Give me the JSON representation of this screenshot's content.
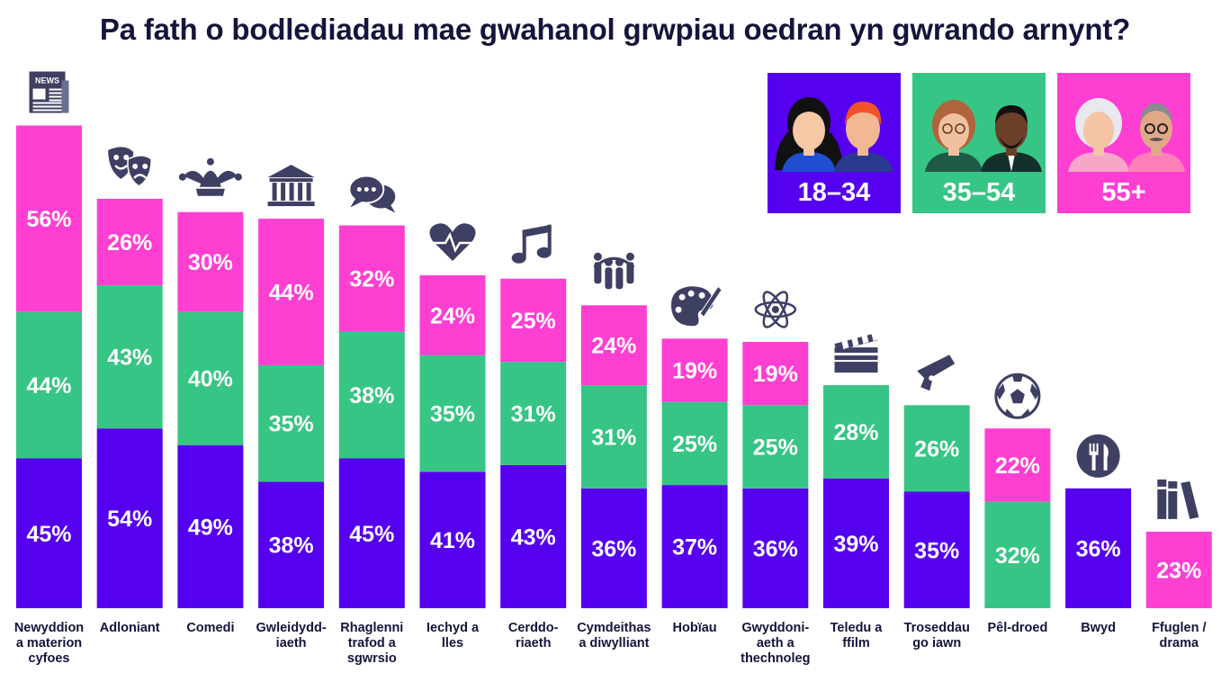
{
  "title": "Pa fath o bodlediadau mae gwahanol grwpiau oedran yn gwrando arnynt?",
  "colors": {
    "purple": "#5500ee",
    "green": "#37c585",
    "pink": "#ff3fd2",
    "dark": "#14143c",
    "icon": "#3d3f63"
  },
  "legend": [
    {
      "label": "18–34",
      "color": "#5500ee"
    },
    {
      "label": "35–54",
      "color": "#37c585"
    },
    {
      "label": "55+",
      "color": "#ff3fd2"
    }
  ],
  "chart_data": {
    "type": "bar",
    "stacked": true,
    "title": "Pa fath o bodlediadau mae gwahanol grwpiau oedran yn gwrando arnynt?",
    "categories": [
      "Newyddion a materion cyfoes",
      "Adloniant",
      "Comedi",
      "Gwleidyddiaeth",
      "Rhaglenni trafod a sgwrsio",
      "Iechyd a lles",
      "Cerddoriaeth",
      "Cymdeithas a diwylliant",
      "Hobïau",
      "Gwyddoniaeth a thechnoleg",
      "Teledu a ffilm",
      "Troseddau go iawn",
      "Pêl-droed",
      "Bwyd",
      "Ffuglen / drama"
    ],
    "category_label_lines": [
      [
        "Newyddion",
        "a materion",
        "cyfoes"
      ],
      [
        "Adloniant"
      ],
      [
        "Comedi"
      ],
      [
        "Gwleidydd-",
        "iaeth"
      ],
      [
        "Rhaglenni",
        "trafod a",
        "sgwrsio"
      ],
      [
        "Iechyd a",
        "lles"
      ],
      [
        "Cerddo-",
        "riaeth"
      ],
      [
        "Cymdeithas",
        "a diwylliant"
      ],
      [
        "Hobïau"
      ],
      [
        "Gwyddoni-",
        "aeth a",
        "thechnoleg"
      ],
      [
        "Teledu a",
        "ffilm"
      ],
      [
        "Troseddau",
        "go iawn"
      ],
      [
        "Pêl-droed"
      ],
      [
        "Bwyd"
      ],
      [
        "Ffuglen /",
        "drama"
      ]
    ],
    "series": [
      {
        "name": "18–34",
        "color": "#5500ee",
        "values": [
          45,
          54,
          49,
          38,
          45,
          41,
          43,
          36,
          37,
          36,
          39,
          35,
          null,
          36,
          null
        ]
      },
      {
        "name": "35–54",
        "color": "#37c585",
        "values": [
          44,
          43,
          40,
          35,
          38,
          35,
          31,
          31,
          25,
          25,
          28,
          26,
          32,
          null,
          null
        ]
      },
      {
        "name": "55+",
        "color": "#ff3fd2",
        "values": [
          56,
          26,
          30,
          44,
          32,
          24,
          25,
          24,
          19,
          19,
          null,
          null,
          22,
          null,
          23
        ]
      }
    ],
    "icons": [
      "newspaper-icon",
      "theatre-masks-icon",
      "jester-hat-icon",
      "government-building-icon",
      "speech-bubbles-icon",
      "heartbeat-icon",
      "music-note-icon",
      "community-people-icon",
      "paint-palette-icon",
      "atom-icon",
      "clapperboard-icon",
      "pistol-icon",
      "football-icon",
      "fork-knife-icon",
      "books-icon"
    ],
    "legend_position": "top-right",
    "grid": false
  }
}
